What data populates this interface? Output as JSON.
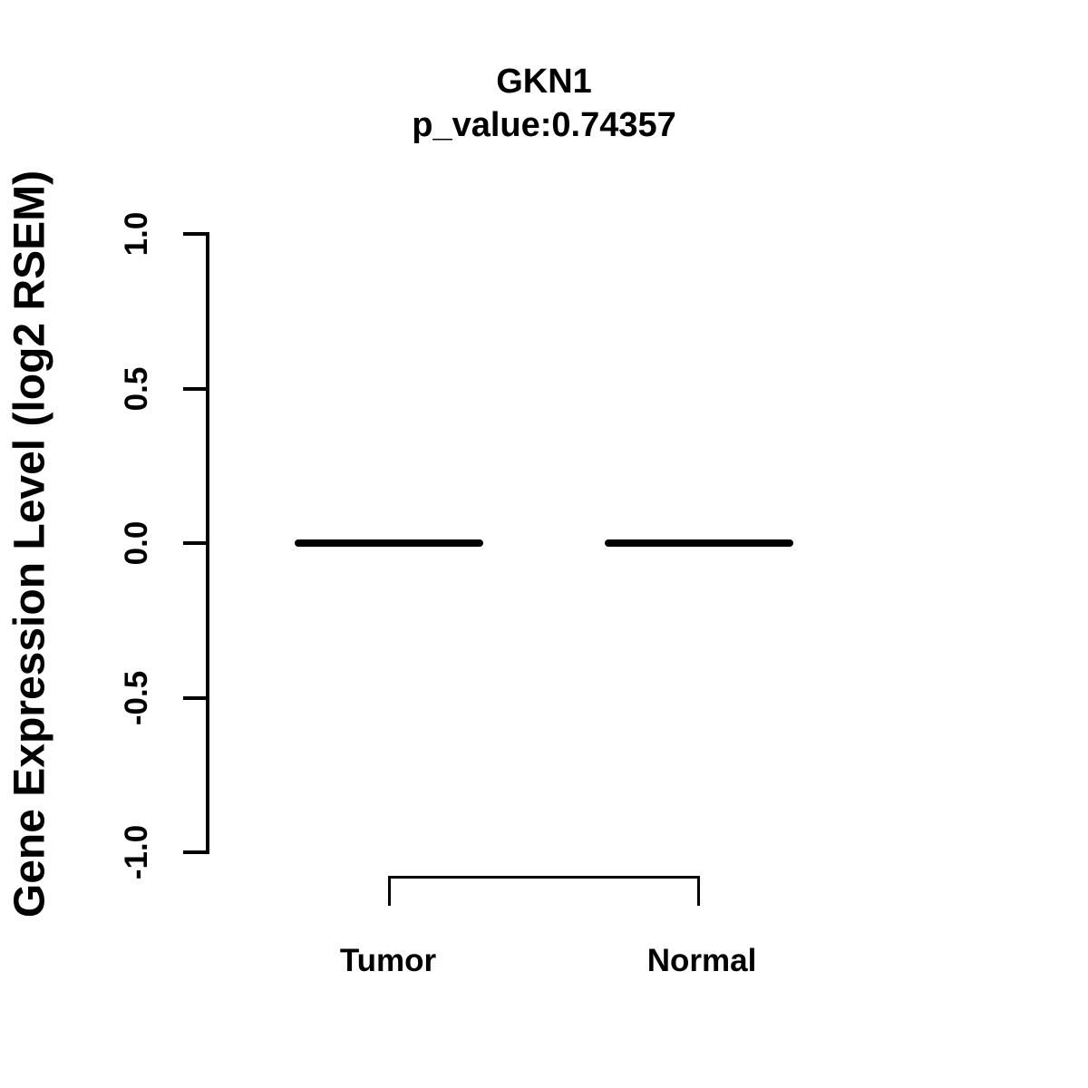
{
  "chart_data": {
    "type": "boxplot",
    "title": "GKN1",
    "subtitle": "p_value:0.74357",
    "gene": "GKN1",
    "p_value": 0.74357,
    "ylabel": "Gene Expression Level (log2 RSEM)",
    "ylim": [
      -1.0,
      1.0
    ],
    "yticks": [
      1.0,
      0.5,
      0.0,
      -0.5,
      -1.0
    ],
    "ytick_labels": [
      "1.0",
      "0.5",
      "0.0",
      "-0.5",
      "-1.0"
    ],
    "categories": [
      "Tumor",
      "Normal"
    ],
    "series": [
      {
        "name": "Tumor",
        "median": 0.0,
        "q1": 0.0,
        "q3": 0.0,
        "whisker_low": 0.0,
        "whisker_high": 0.0
      },
      {
        "name": "Normal",
        "median": 0.0,
        "q1": 0.0,
        "q3": 0.0,
        "whisker_low": 0.0,
        "whisker_high": 0.0
      }
    ],
    "grid": false,
    "legend_position": "none",
    "colors": {
      "foreground": "#000000",
      "background": "#ffffff"
    }
  }
}
